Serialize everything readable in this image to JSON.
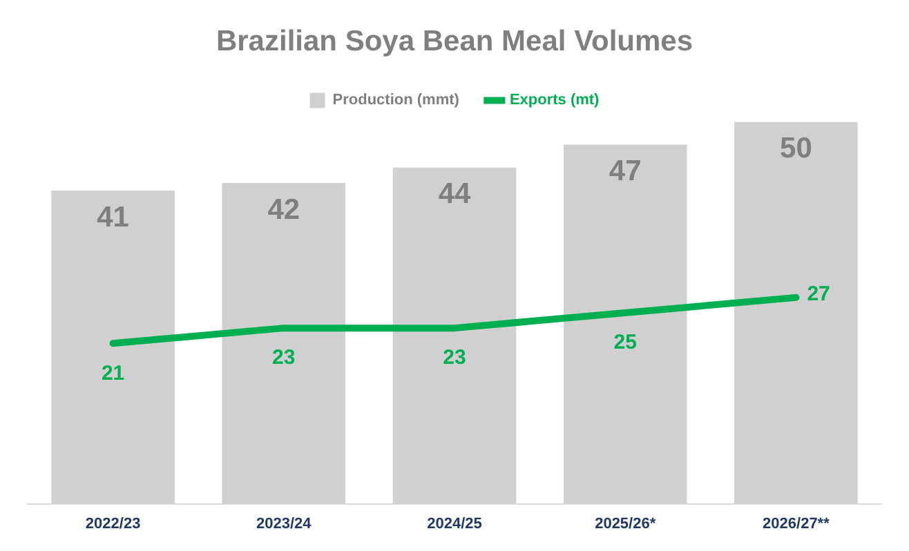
{
  "chart_data": {
    "type": "bar",
    "title": "Brazilian Soya Bean Meal Volumes",
    "categories": [
      "2022/23",
      "2023/24",
      "2024/25",
      "2025/26*",
      "2026/27**"
    ],
    "series": [
      {
        "name": "Production (mmt)",
        "color": "#d0d0d0",
        "values": [
          41,
          42,
          44,
          47,
          50
        ]
      },
      {
        "name": "Exports (mt)",
        "type": "line",
        "color": "#00b050",
        "values": [
          21,
          23,
          23,
          25,
          27
        ]
      }
    ],
    "data_labels": true,
    "legend": "top",
    "grid": false,
    "marker": "none"
  }
}
